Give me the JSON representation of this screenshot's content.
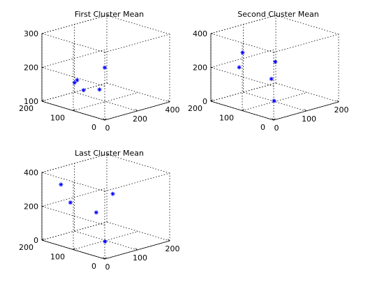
{
  "colors": {
    "point": "#0000ff",
    "axis": "#000000",
    "background": "#ffffff"
  },
  "chart_data": [
    {
      "type": "scatter",
      "title": "First Cluster Mean",
      "xlim": [
        0,
        400
      ],
      "ylim": [
        0,
        200
      ],
      "zlim": [
        100,
        300
      ],
      "xticks": [
        "0",
        "200",
        "400"
      ],
      "yticks": [
        "0",
        "100",
        "200"
      ],
      "zticks": [
        "100",
        "200",
        "300"
      ],
      "grid": true,
      "points": [
        {
          "x": 0,
          "y": 0,
          "z": 255
        },
        {
          "x": 85,
          "y": 140,
          "z": 160
        },
        {
          "x": 120,
          "y": 150,
          "z": 160
        },
        {
          "x": 160,
          "y": 150,
          "z": 125
        },
        {
          "x": 200,
          "y": 120,
          "z": 130
        }
      ]
    },
    {
      "type": "scatter",
      "title": "Second Cluster Mean",
      "xlim": [
        0,
        200
      ],
      "ylim": [
        0,
        200
      ],
      "zlim": [
        0,
        400
      ],
      "xticks": [
        "0",
        "100",
        "200"
      ],
      "yticks": [
        "0",
        "100",
        "200"
      ],
      "zticks": [
        "0",
        "200",
        "400"
      ],
      "grid": true,
      "points": [
        {
          "x": 30,
          "y": 130,
          "z": 310
        },
        {
          "x": 5,
          "y": 115,
          "z": 245
        },
        {
          "x": 80,
          "y": 90,
          "z": 150
        },
        {
          "x": 150,
          "y": 150,
          "z": 180
        },
        {
          "x": 40,
          "y": 40,
          "z": 70
        }
      ]
    },
    {
      "type": "scatter",
      "title": "Last Cluster Mean",
      "xlim": [
        0,
        200
      ],
      "ylim": [
        0,
        200
      ],
      "zlim": [
        0,
        400
      ],
      "xticks": [
        "0",
        "100",
        "200"
      ],
      "yticks": [
        "0",
        "100",
        "200"
      ],
      "zticks": [
        "0",
        "200",
        "400"
      ],
      "grid": true,
      "points": [
        {
          "x": 20,
          "y": 160,
          "z": 340
        },
        {
          "x": 25,
          "y": 135,
          "z": 245
        },
        {
          "x": 90,
          "y": 120,
          "z": 160
        },
        {
          "x": 170,
          "y": 150,
          "z": 210
        },
        {
          "x": 30,
          "y": 30,
          "z": 70
        }
      ]
    }
  ]
}
